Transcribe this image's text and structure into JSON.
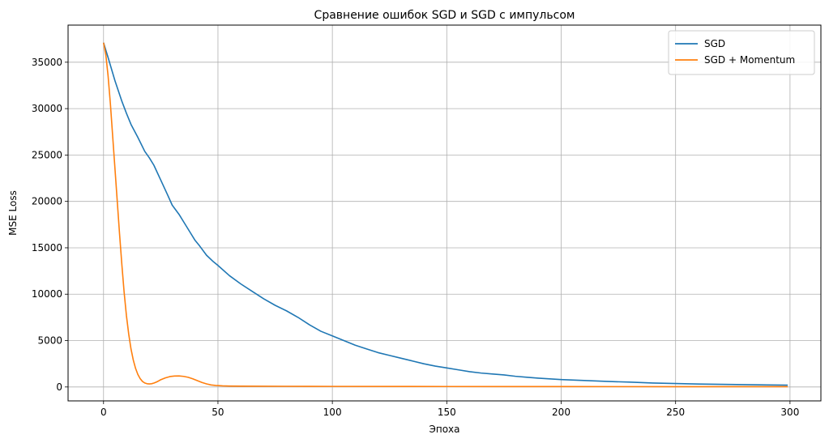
{
  "chart_data": {
    "type": "line",
    "title": "Сравнение ошибок SGD и SGD с импульсом",
    "xlabel": "Эпоха",
    "ylabel": "MSE Loss",
    "xlim": [
      -15.5,
      313.5
    ],
    "ylim": [
      -1500,
      39000
    ],
    "xticks": [
      0,
      50,
      100,
      150,
      200,
      250,
      300
    ],
    "yticks": [
      0,
      5000,
      10000,
      15000,
      20000,
      25000,
      30000,
      35000
    ],
    "grid": true,
    "legend_position": "top-right",
    "series": [
      {
        "name": "SGD",
        "color": "#1f77b4",
        "points": [
          [
            0,
            37100
          ],
          [
            2,
            35500
          ],
          [
            5,
            33000
          ],
          [
            8,
            30800
          ],
          [
            10,
            29500
          ],
          [
            12,
            28300
          ],
          [
            15,
            26900
          ],
          [
            18,
            25400
          ],
          [
            20,
            24700
          ],
          [
            22,
            23900
          ],
          [
            25,
            22300
          ],
          [
            28,
            20700
          ],
          [
            30,
            19600
          ],
          [
            33,
            18600
          ],
          [
            35,
            17800
          ],
          [
            38,
            16600
          ],
          [
            40,
            15800
          ],
          [
            42,
            15200
          ],
          [
            45,
            14200
          ],
          [
            48,
            13500
          ],
          [
            50,
            13100
          ],
          [
            55,
            12000
          ],
          [
            60,
            11100
          ],
          [
            65,
            10300
          ],
          [
            70,
            9500
          ],
          [
            75,
            8800
          ],
          [
            80,
            8200
          ],
          [
            85,
            7500
          ],
          [
            90,
            6700
          ],
          [
            95,
            6000
          ],
          [
            100,
            5500
          ],
          [
            105,
            5000
          ],
          [
            110,
            4500
          ],
          [
            115,
            4100
          ],
          [
            120,
            3700
          ],
          [
            125,
            3400
          ],
          [
            130,
            3100
          ],
          [
            135,
            2800
          ],
          [
            140,
            2500
          ],
          [
            145,
            2250
          ],
          [
            150,
            2050
          ],
          [
            155,
            1850
          ],
          [
            160,
            1650
          ],
          [
            165,
            1500
          ],
          [
            170,
            1400
          ],
          [
            175,
            1300
          ],
          [
            180,
            1150
          ],
          [
            185,
            1050
          ],
          [
            190,
            950
          ],
          [
            195,
            870
          ],
          [
            200,
            800
          ],
          [
            210,
            700
          ],
          [
            220,
            600
          ],
          [
            230,
            520
          ],
          [
            240,
            430
          ],
          [
            250,
            370
          ],
          [
            260,
            320
          ],
          [
            270,
            280
          ],
          [
            280,
            250
          ],
          [
            290,
            220
          ],
          [
            299,
            200
          ]
        ]
      },
      {
        "name": "SGD + Momentum",
        "color": "#ff7f0e",
        "points": [
          [
            0,
            37100
          ],
          [
            1,
            35800
          ],
          [
            2,
            33500
          ],
          [
            3,
            30500
          ],
          [
            4,
            27000
          ],
          [
            5,
            23500
          ],
          [
            6,
            20000
          ],
          [
            7,
            16500
          ],
          [
            8,
            13200
          ],
          [
            9,
            10200
          ],
          [
            10,
            7700
          ],
          [
            11,
            5700
          ],
          [
            12,
            4100
          ],
          [
            13,
            2900
          ],
          [
            14,
            2000
          ],
          [
            15,
            1350
          ],
          [
            16,
            900
          ],
          [
            17,
            600
          ],
          [
            18,
            430
          ],
          [
            19,
            350
          ],
          [
            20,
            330
          ],
          [
            21,
            350
          ],
          [
            22,
            420
          ],
          [
            23,
            520
          ],
          [
            24,
            640
          ],
          [
            25,
            780
          ],
          [
            27,
            980
          ],
          [
            29,
            1120
          ],
          [
            31,
            1180
          ],
          [
            33,
            1190
          ],
          [
            35,
            1140
          ],
          [
            37,
            1040
          ],
          [
            39,
            880
          ],
          [
            41,
            680
          ],
          [
            43,
            490
          ],
          [
            45,
            330
          ],
          [
            47,
            220
          ],
          [
            49,
            160
          ],
          [
            52,
            120
          ],
          [
            55,
            100
          ],
          [
            60,
            90
          ],
          [
            80,
            70
          ],
          [
            100,
            60
          ],
          [
            150,
            50
          ],
          [
            200,
            40
          ],
          [
            250,
            35
          ],
          [
            299,
            30
          ]
        ]
      }
    ]
  }
}
